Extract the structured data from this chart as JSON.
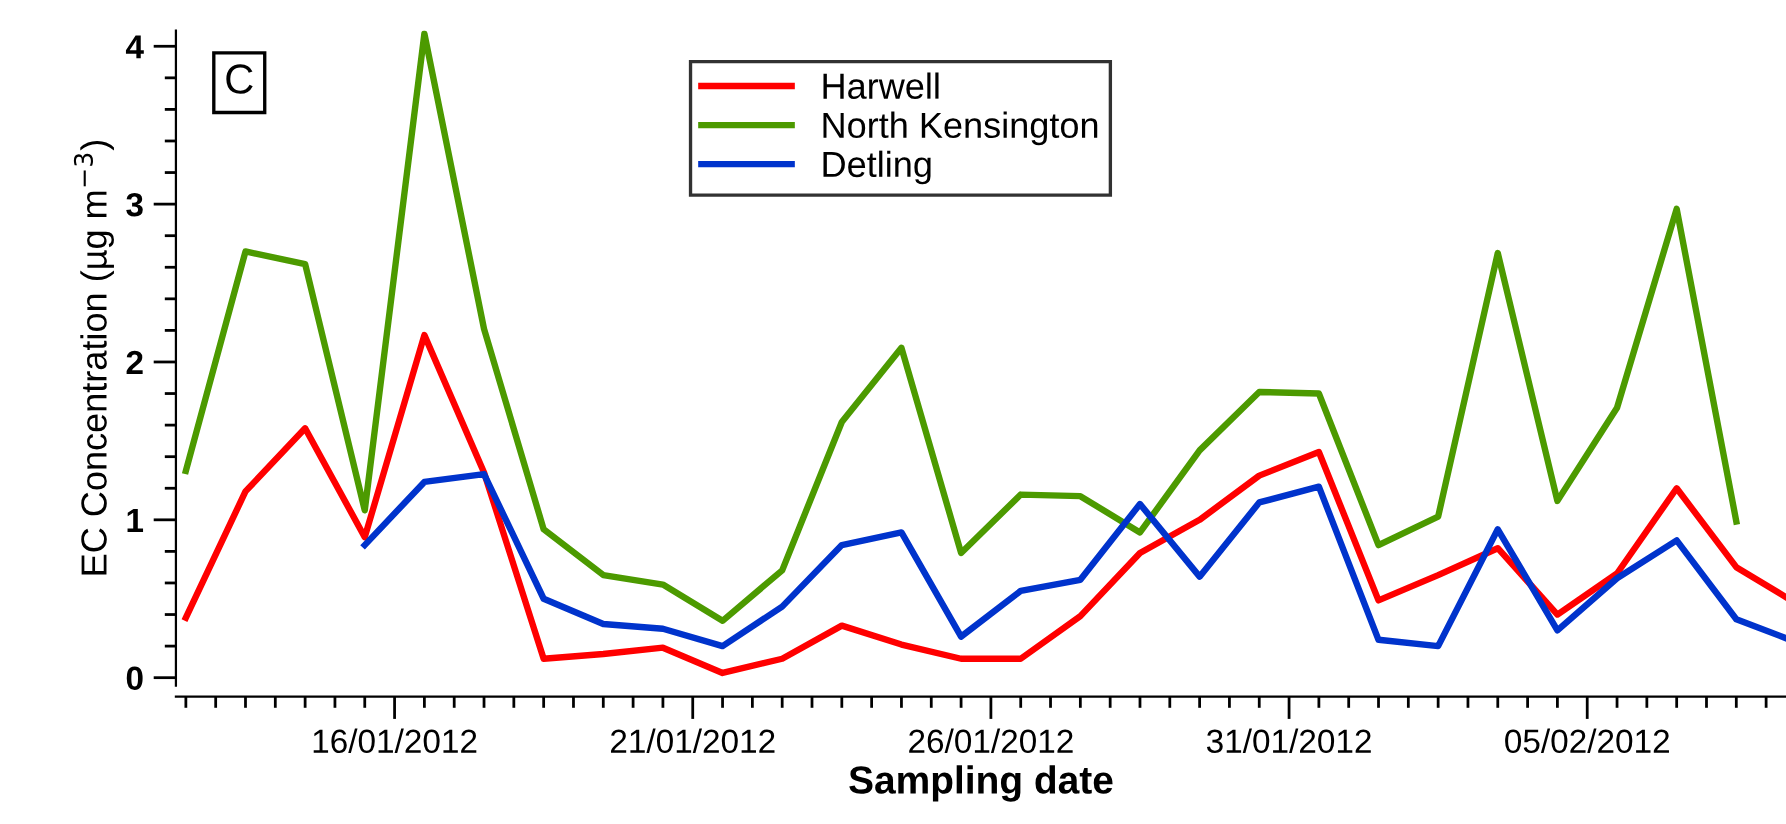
{
  "chart_data": {
    "type": "line",
    "x": [
      "2012-01-12T12:00",
      "2012-01-13T12:00",
      "2012-01-14T12:00",
      "2012-01-15T12:00",
      "2012-01-16T12:00",
      "2012-01-17T12:00",
      "2012-01-18T12:00",
      "2012-01-19T12:00",
      "2012-01-20T12:00",
      "2012-01-21T12:00",
      "2012-01-22T12:00",
      "2012-01-23T12:00",
      "2012-01-24T12:00",
      "2012-01-25T12:00",
      "2012-01-26T12:00",
      "2012-01-27T12:00",
      "2012-01-28T12:00",
      "2012-01-29T12:00",
      "2012-01-30T12:00",
      "2012-01-31T12:00",
      "2012-02-01T12:00",
      "2012-02-02T12:00",
      "2012-02-03T12:00",
      "2012-02-04T12:00",
      "2012-02-05T12:00",
      "2012-02-06T12:00",
      "2012-02-07T12:00",
      "2012-02-08T08:00"
    ],
    "series": [
      {
        "name": "Harwell",
        "color": "#ff0000",
        "values": [
          0.38,
          1.18,
          1.58,
          0.89,
          2.17,
          1.3,
          0.12,
          0.15,
          0.19,
          0.03,
          0.12,
          0.33,
          0.21,
          0.12,
          0.12,
          0.39,
          0.79,
          1.0,
          1.28,
          1.43,
          0.49,
          0.65,
          0.82,
          0.4,
          0.66,
          1.2,
          0.7,
          0.51
        ]
      },
      {
        "name": "North Kensington",
        "color": "#4c9a00",
        "values": [
          1.31,
          2.7,
          2.62,
          1.06,
          4.08,
          2.21,
          0.94,
          0.65,
          0.59,
          0.36,
          0.68,
          1.62,
          2.09,
          0.79,
          1.16,
          1.15,
          0.92,
          1.44,
          1.81,
          1.8,
          0.84,
          1.02,
          2.69,
          1.12,
          1.71,
          2.97,
          0.99,
          null
        ]
      },
      {
        "name": "Detling",
        "color": "#0033cc",
        "values": [
          null,
          null,
          null,
          0.84,
          1.24,
          1.29,
          0.5,
          0.34,
          0.31,
          0.2,
          0.45,
          0.84,
          0.92,
          0.26,
          0.55,
          0.62,
          1.1,
          0.64,
          1.11,
          1.21,
          0.24,
          0.2,
          0.94,
          0.3,
          0.63,
          0.87,
          0.37,
          0.25
        ]
      }
    ],
    "xlabel": "Sampling date",
    "ylabel": "EC Concentration (µg m$^{−3}$)",
    "annotations": [
      "C"
    ],
    "xlim": [
      "2012-01-12T08:00",
      "2012-02-08T08:00"
    ],
    "ylim": [
      -0.05,
      4.1
    ],
    "xticks": [
      {
        "value": "2012-01-12T12:00",
        "label": null
      },
      {
        "value": "2012-01-13T00:00",
        "label": null
      },
      {
        "value": "2012-01-13T12:00",
        "label": null
      },
      {
        "value": "2012-01-14T00:00",
        "label": null
      },
      {
        "value": "2012-01-14T12:00",
        "label": null
      },
      {
        "value": "2012-01-15T00:00",
        "label": null
      },
      {
        "value": "2012-01-15T12:00",
        "label": null
      },
      {
        "value": "2012-01-16T00:00",
        "label": "16/01/2012"
      },
      {
        "value": "2012-01-16T12:00",
        "label": null
      },
      {
        "value": "2012-01-17T00:00",
        "label": null
      },
      {
        "value": "2012-01-17T12:00",
        "label": null
      },
      {
        "value": "2012-01-18T00:00",
        "label": null
      },
      {
        "value": "2012-01-18T12:00",
        "label": null
      },
      {
        "value": "2012-01-19T00:00",
        "label": null
      },
      {
        "value": "2012-01-19T12:00",
        "label": null
      },
      {
        "value": "2012-01-20T00:00",
        "label": null
      },
      {
        "value": "2012-01-20T12:00",
        "label": null
      },
      {
        "value": "2012-01-21T00:00",
        "label": "21/01/2012"
      },
      {
        "value": "2012-01-21T12:00",
        "label": null
      },
      {
        "value": "2012-01-22T00:00",
        "label": null
      },
      {
        "value": "2012-01-22T12:00",
        "label": null
      },
      {
        "value": "2012-01-23T00:00",
        "label": null
      },
      {
        "value": "2012-01-23T12:00",
        "label": null
      },
      {
        "value": "2012-01-24T00:00",
        "label": null
      },
      {
        "value": "2012-01-24T12:00",
        "label": null
      },
      {
        "value": "2012-01-25T00:00",
        "label": null
      },
      {
        "value": "2012-01-25T12:00",
        "label": null
      },
      {
        "value": "2012-01-26T00:00",
        "label": "26/01/2012"
      },
      {
        "value": "2012-01-26T12:00",
        "label": null
      },
      {
        "value": "2012-01-27T00:00",
        "label": null
      },
      {
        "value": "2012-01-27T12:00",
        "label": null
      },
      {
        "value": "2012-01-28T00:00",
        "label": null
      },
      {
        "value": "2012-01-28T12:00",
        "label": null
      },
      {
        "value": "2012-01-29T00:00",
        "label": null
      },
      {
        "value": "2012-01-29T12:00",
        "label": null
      },
      {
        "value": "2012-01-30T00:00",
        "label": null
      },
      {
        "value": "2012-01-30T12:00",
        "label": null
      },
      {
        "value": "2012-01-31T00:00",
        "label": "31/01/2012"
      },
      {
        "value": "2012-01-31T12:00",
        "label": null
      },
      {
        "value": "2012-02-01T00:00",
        "label": null
      },
      {
        "value": "2012-02-01T12:00",
        "label": null
      },
      {
        "value": "2012-02-02T00:00",
        "label": null
      },
      {
        "value": "2012-02-02T12:00",
        "label": null
      },
      {
        "value": "2012-02-03T00:00",
        "label": null
      },
      {
        "value": "2012-02-03T12:00",
        "label": null
      },
      {
        "value": "2012-02-04T00:00",
        "label": null
      },
      {
        "value": "2012-02-04T12:00",
        "label": null
      },
      {
        "value": "2012-02-05T00:00",
        "label": "05/02/2012"
      },
      {
        "value": "2012-02-05T12:00",
        "label": null
      },
      {
        "value": "2012-02-06T00:00",
        "label": null
      },
      {
        "value": "2012-02-06T12:00",
        "label": null
      },
      {
        "value": "2012-02-07T00:00",
        "label": null
      },
      {
        "value": "2012-02-07T12:00",
        "label": null
      },
      {
        "value": "2012-02-08T00:00",
        "label": null
      }
    ],
    "yticks": [
      0,
      {
        "value": 0.2,
        "label": null
      },
      {
        "value": 0.4,
        "label": null
      },
      {
        "value": 0.6,
        "label": null
      },
      {
        "value": 0.8,
        "label": null
      },
      1,
      {
        "value": 1.2,
        "label": null
      },
      {
        "value": 1.4,
        "label": null
      },
      {
        "value": 1.6,
        "label": null
      },
      {
        "value": 1.8,
        "label": null
      },
      2,
      {
        "value": 2.2,
        "label": null
      },
      {
        "value": 2.4,
        "label": null
      },
      {
        "value": 2.6,
        "label": null
      },
      {
        "value": 2.8,
        "label": null
      },
      3,
      {
        "value": 3.2,
        "label": null
      },
      {
        "value": 3.4,
        "label": null
      },
      {
        "value": 3.6,
        "label": null
      },
      {
        "value": 3.8,
        "label": null
      },
      4
    ],
    "legend": "top",
    "grid": false,
    "marker": "none",
    "line_style": "solid"
  }
}
